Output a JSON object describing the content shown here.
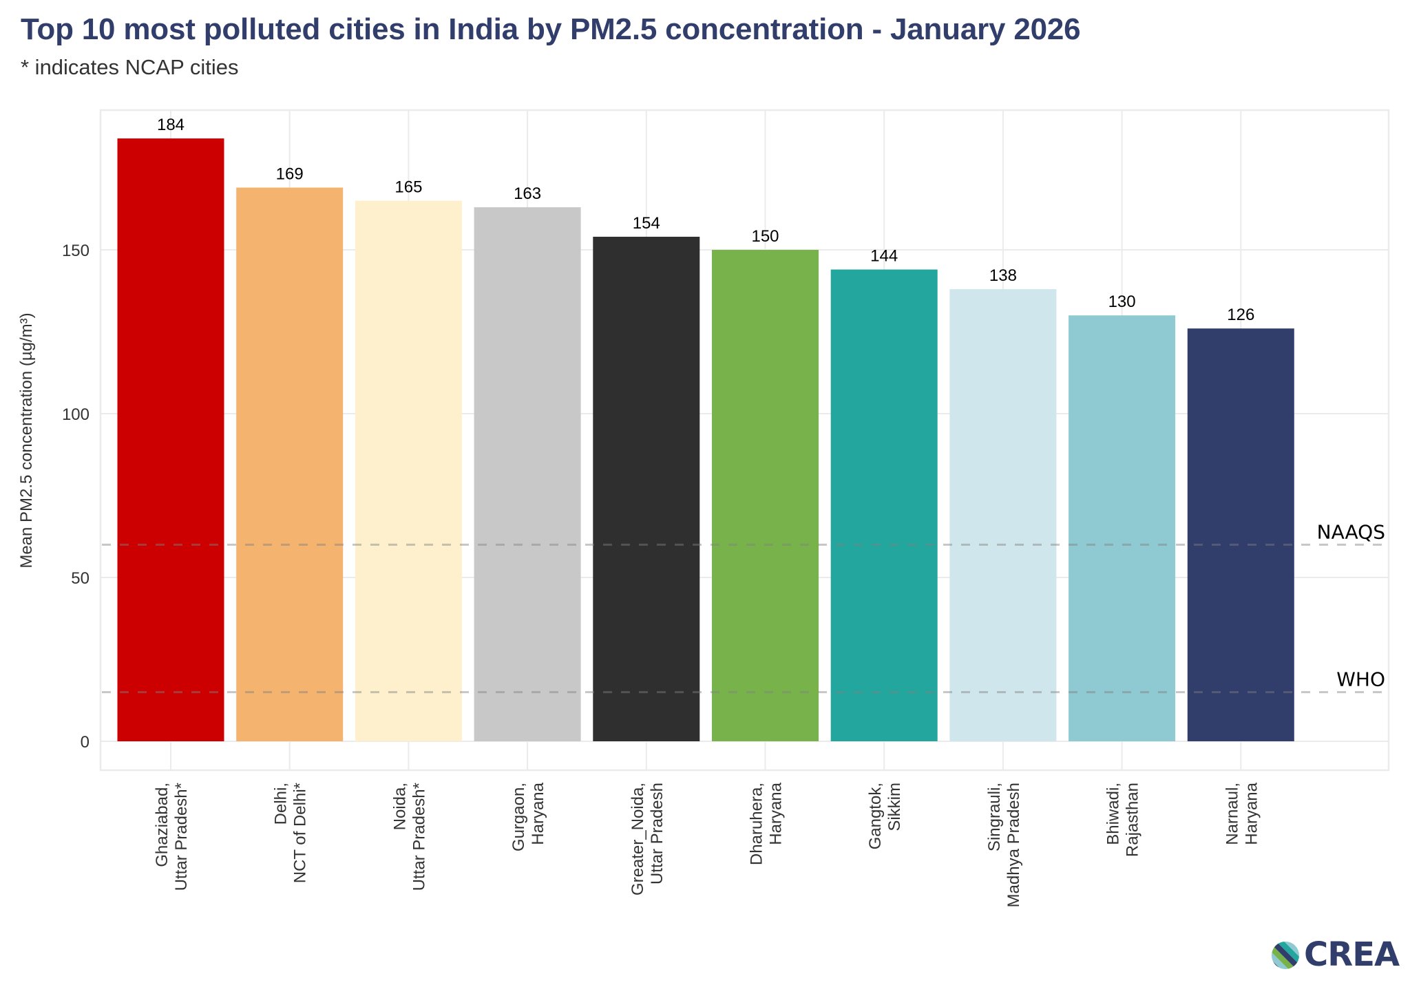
{
  "title": "Top 10 most polluted cities in India by PM2.5 concentration - January 2026",
  "subtitle": "* indicates NCAP cities",
  "logo": {
    "text": "CREA",
    "colors": [
      "#313d6b",
      "#77b24b",
      "#23a69d",
      "#8fc9d1"
    ]
  },
  "chart_data": {
    "type": "bar",
    "title": "Top 10 most polluted cities in India by PM2.5 concentration - January 2026",
    "subtitle": "* indicates NCAP cities",
    "xlabel": "",
    "ylabel": "Mean PM2.5 concentration (µg/m³)",
    "ylim": [
      -9,
      192
    ],
    "yticks": [
      0,
      50,
      100,
      150
    ],
    "grid": true,
    "categories": [
      [
        "Ghaziabad,",
        "Uttar Pradesh*"
      ],
      [
        "Delhi,",
        "NCT of Delhi*"
      ],
      [
        "Noida,",
        "Uttar Pradesh*"
      ],
      [
        "Gurgaon,",
        "Haryana"
      ],
      [
        "Greater_Noida,",
        "Uttar Pradesh"
      ],
      [
        "Dharuhera,",
        "Haryana"
      ],
      [
        "Gangtok,",
        "Sikkim"
      ],
      [
        "Singrauli,",
        "Madhya Pradesh"
      ],
      [
        "Bhiwadi,",
        "Rajasthan"
      ],
      [
        "Narnaul,",
        "Haryana"
      ]
    ],
    "values": [
      184,
      169,
      165,
      163,
      154,
      150,
      144,
      138,
      130,
      126
    ],
    "data_labels": [
      "184",
      "169",
      "165",
      "163",
      "154",
      "150",
      "144",
      "138",
      "130",
      "126"
    ],
    "colors": [
      "#cc0000",
      "#f4b36e",
      "#fef0cc",
      "#c8c8c8",
      "#2f2f2f",
      "#77b24b",
      "#23a69d",
      "#cfe7ec",
      "#8fc9d1",
      "#313d6b"
    ],
    "reference_lines": [
      {
        "label": "NAAQS",
        "value": 60
      },
      {
        "label": "WHO",
        "value": 15
      }
    ],
    "legend": "none"
  }
}
